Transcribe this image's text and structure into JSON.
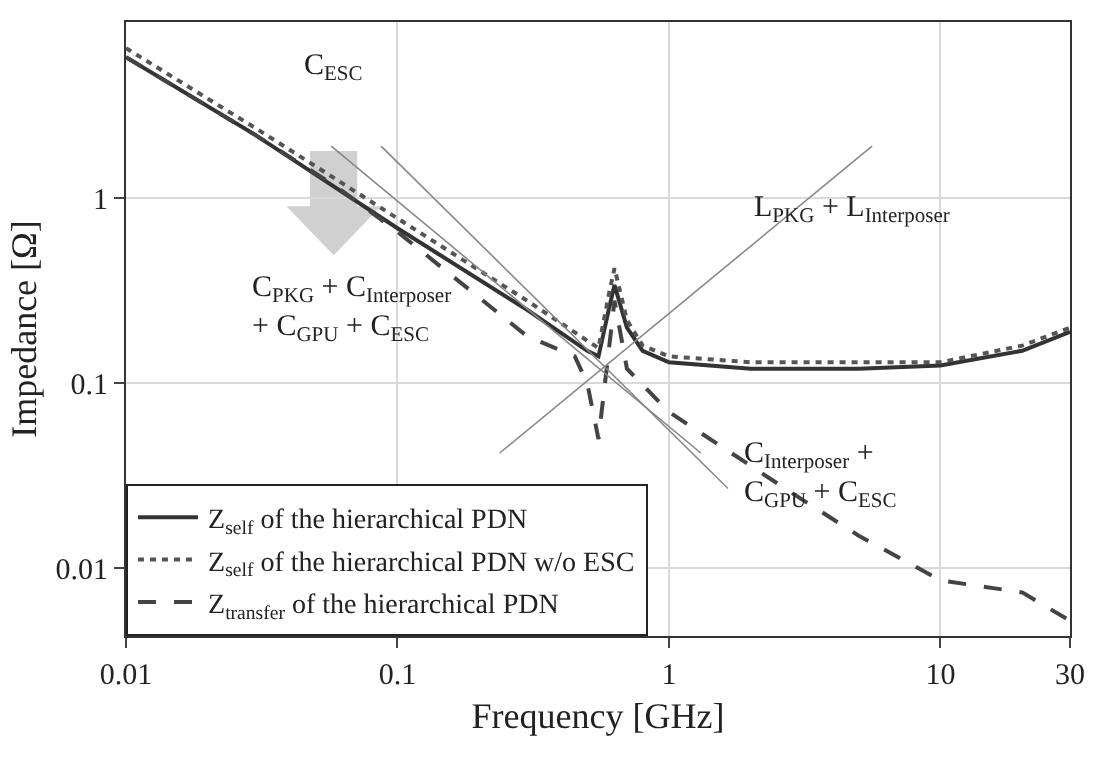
{
  "chart_data": {
    "type": "line",
    "xlabel": "Frequency [GHz]",
    "ylabel": "Impedance [Ω]",
    "log": "xy",
    "grid": true,
    "legend": "bottom left",
    "xlim": [
      0.01,
      30
    ],
    "xticks": [
      0.01,
      0.1,
      1,
      10,
      30
    ],
    "ylim": [
      0.0043,
      9
    ],
    "yticks": [
      0.01,
      0.1,
      1
    ],
    "series": [
      {
        "name": "Z$_{self}$ of the hierarchical PDN",
        "color": "#333333",
        "line_style": "solid",
        "x": [
          0.01,
          0.03,
          0.1,
          0.3,
          0.5,
          0.55,
          0.6,
          0.63,
          0.7,
          0.8,
          1,
          2,
          5,
          10,
          20,
          30
        ],
        "values": [
          5.8,
          2.2,
          0.69,
          0.25,
          0.15,
          0.14,
          0.25,
          0.34,
          0.2,
          0.15,
          0.13,
          0.12,
          0.12,
          0.125,
          0.15,
          0.19
        ]
      },
      {
        "name": "Z$_{self}$ of the hierarchical PDN w/o ESC",
        "color": "#555555",
        "line_style": "dotted",
        "x": [
          0.01,
          0.03,
          0.1,
          0.3,
          0.5,
          0.55,
          0.6,
          0.63,
          0.7,
          0.8,
          1,
          2,
          5,
          10,
          20,
          30
        ],
        "values": [
          6.5,
          2.4,
          0.78,
          0.28,
          0.17,
          0.155,
          0.3,
          0.42,
          0.22,
          0.16,
          0.14,
          0.13,
          0.13,
          0.13,
          0.16,
          0.2
        ]
      },
      {
        "name": "Z$_{transfer}$ of the hierarchical PDN",
        "color": "#444444",
        "line_style": "dashed",
        "x": [
          0.01,
          0.03,
          0.06,
          0.1,
          0.3,
          0.45,
          0.5,
          0.55,
          0.6,
          0.63,
          0.7,
          1,
          2.9,
          5,
          10,
          20,
          30
        ],
        "values": [
          5.8,
          2.2,
          1.15,
          0.66,
          0.18,
          0.14,
          0.1,
          0.05,
          0.15,
          0.28,
          0.12,
          0.07,
          0.025,
          0.015,
          0.0086,
          0.0074,
          0.0052
        ]
      },
      {
        "color": "#888888",
        "line_style": "solid",
        "x": [
          0.057,
          1.31
        ],
        "values": [
          1.92,
          0.042
        ]
      },
      {
        "color": "#888888",
        "line_style": "solid",
        "x": [
          0.087,
          1.65
        ],
        "values": [
          1.92,
          0.027
        ]
      },
      {
        "color": "#888888",
        "line_style": "solid",
        "x": [
          0.238,
          5.6
        ],
        "values": [
          0.042,
          1.92
        ]
      }
    ],
    "annotations": [
      "C$_{ESC}$",
      "C$_{PKG}$ + C$_{Interposer}$\n+ C$_{GPU}$ + C$_{ESC}$",
      "L$_{PKG}$ + L$_{Interposer}$",
      "C$_{Interposer}$ +\nC$_{GPU}$ + C$_{ESC}$"
    ]
  }
}
